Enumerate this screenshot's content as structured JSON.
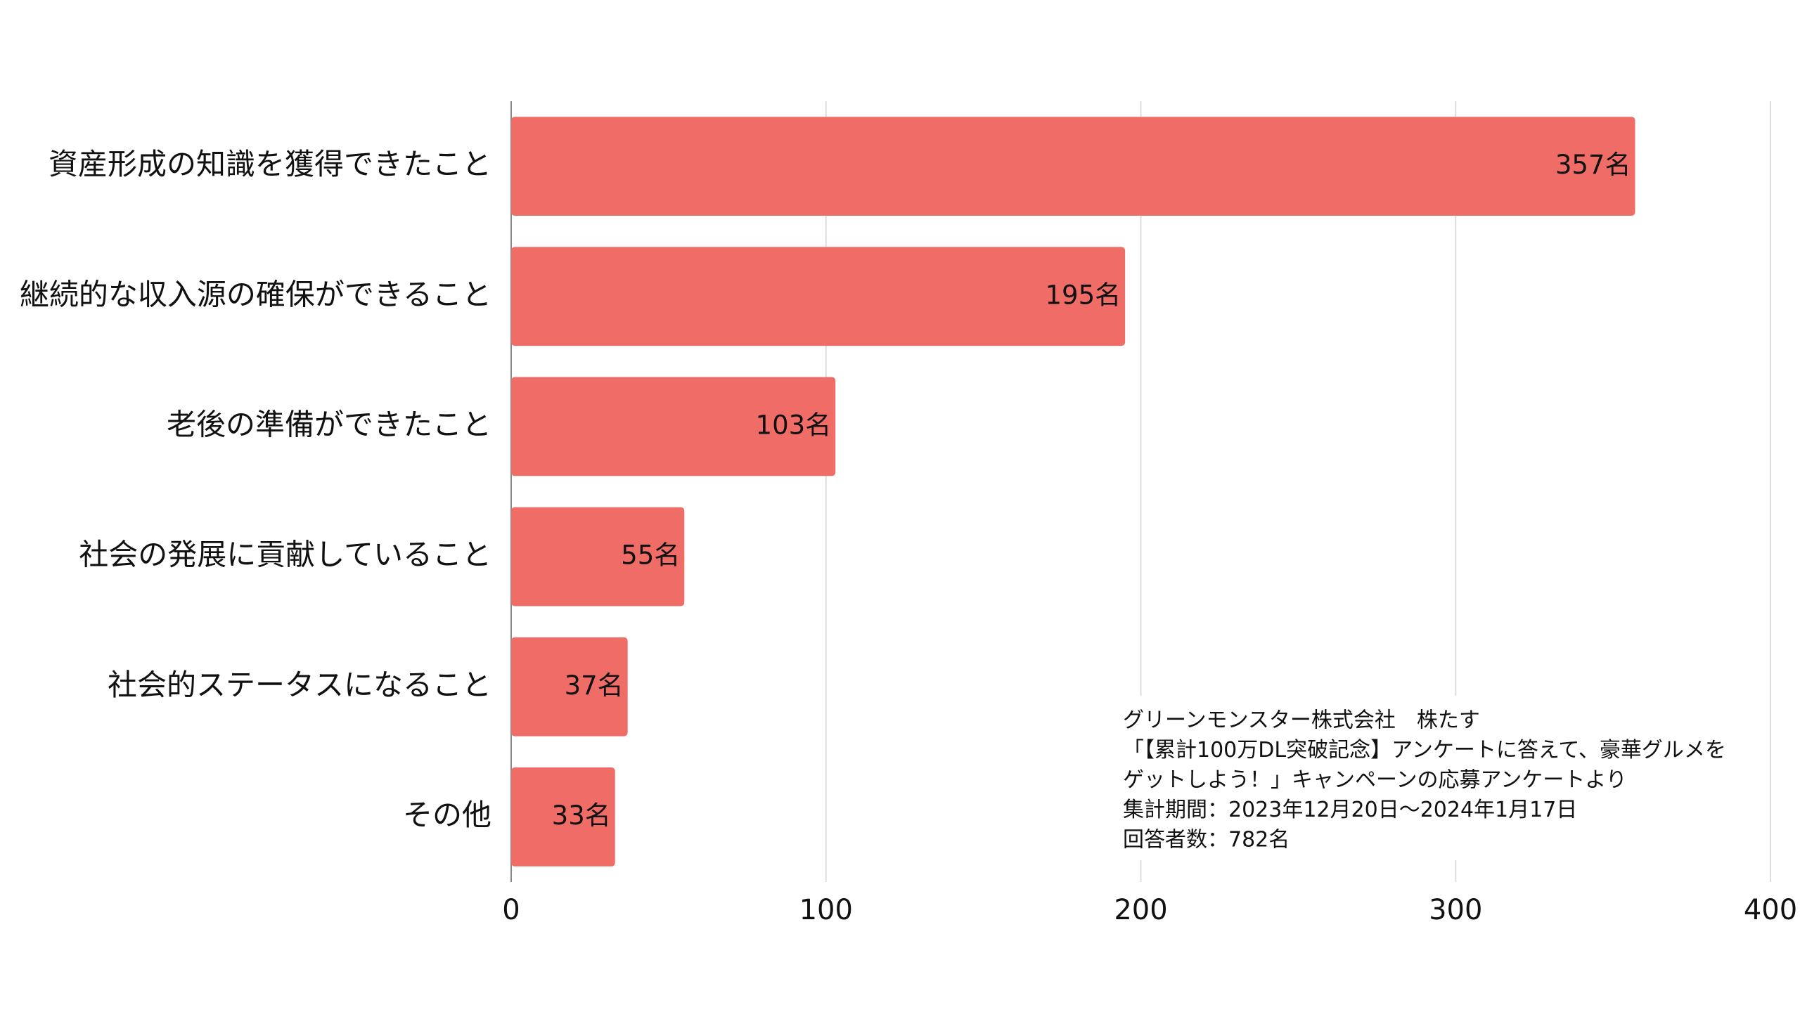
{
  "chart_data": {
    "type": "bar",
    "orientation": "horizontal",
    "categories": [
      "資産形成の知識を獲得できたこと",
      "継続的な収入源の確保ができること",
      "老後の準備ができたこと",
      "社会の発展に貢献していること",
      "社会的ステータスになること",
      "その他"
    ],
    "values": [
      357,
      195,
      103,
      55,
      37,
      33
    ],
    "value_labels": [
      "357名",
      "195名",
      "103名",
      "55名",
      "37名",
      "33名"
    ],
    "color": "#ef6c67",
    "xlim": [
      0,
      400
    ],
    "xticks": [
      0,
      100,
      200,
      300,
      400
    ],
    "grid": true,
    "annotation": [
      "グリーンモンスター株式会社　株たす",
      "「【累計100万DL突破記念】アンケートに答えて、豪華グルメを",
      "ゲットしよう！」キャンペーンの応募アンケートより",
      "集計期間：2023年12月20日〜2024年1月17日",
      "回答者数：782名"
    ]
  }
}
